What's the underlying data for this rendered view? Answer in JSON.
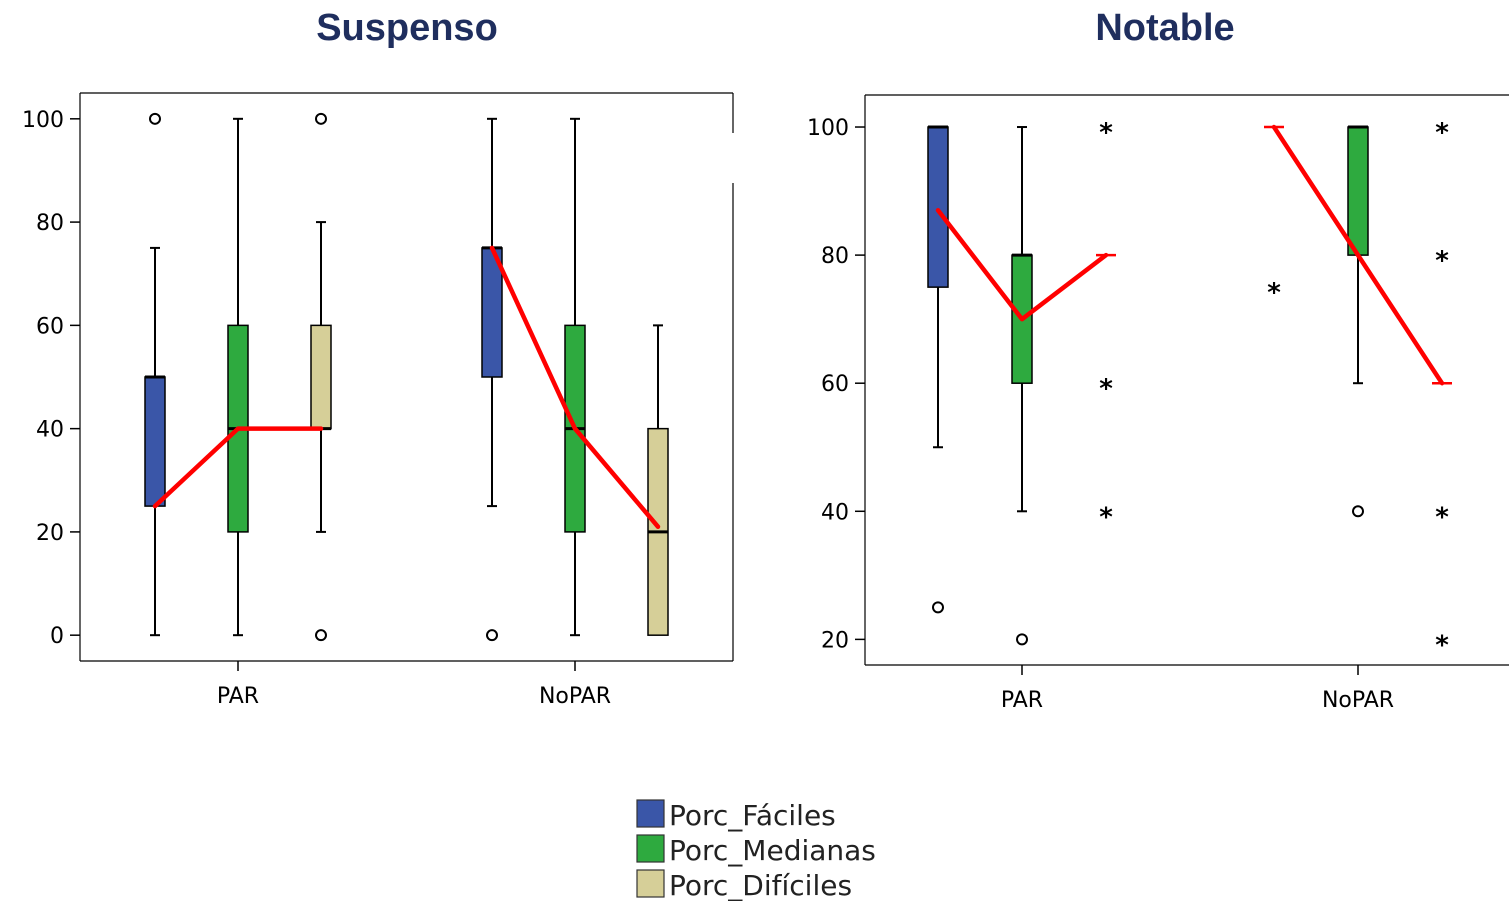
{
  "chart_data": [
    {
      "type": "boxplot",
      "title": "Suspenso",
      "xlabel": "",
      "ylabel": "",
      "ylim": [
        -5,
        105
      ],
      "yticks": [
        0,
        20,
        40,
        60,
        80,
        100
      ],
      "categories": [
        "PAR",
        "NoPAR"
      ],
      "series": [
        {
          "name": "Porc_Fáciles",
          "color": "#3A56A8",
          "boxes": [
            {
              "category": "PAR",
              "min": 0,
              "q1": 25,
              "median": 50,
              "q3": 50,
              "max": 75,
              "outliers": [
                {
                  "value": 100,
                  "kind": "circle"
                }
              ]
            },
            {
              "category": "NoPAR",
              "min": 25,
              "q1": 50,
              "median": 75,
              "q3": 75,
              "max": 100,
              "outliers": [
                {
                  "value": 0,
                  "kind": "circle"
                }
              ]
            }
          ]
        },
        {
          "name": "Porc_Medianas",
          "color": "#2EAA3F",
          "boxes": [
            {
              "category": "PAR",
              "min": 0,
              "q1": 20,
              "median": 40,
              "q3": 60,
              "max": 100,
              "outliers": []
            },
            {
              "category": "NoPAR",
              "min": 0,
              "q1": 20,
              "median": 40,
              "q3": 60,
              "max": 100,
              "outliers": []
            }
          ]
        },
        {
          "name": "Porc_Difíciles",
          "color": "#D6CF98",
          "boxes": [
            {
              "category": "PAR",
              "min": 20,
              "q1": 40,
              "median": 40,
              "q3": 60,
              "max": 80,
              "outliers": [
                {
                  "value": 100,
                  "kind": "circle"
                },
                {
                  "value": 0,
                  "kind": "circle"
                }
              ]
            },
            {
              "category": "NoPAR",
              "min": 0,
              "q1": 0,
              "median": 20,
              "q3": 40,
              "max": 60,
              "outliers": []
            }
          ]
        }
      ],
      "trend_lines": [
        {
          "category": "PAR",
          "color": "#FF0000",
          "values": [
            25,
            40,
            40
          ]
        },
        {
          "category": "NoPAR",
          "color": "#FF0000",
          "values": [
            75,
            40,
            21
          ]
        }
      ]
    },
    {
      "type": "boxplot",
      "title": "Notable",
      "xlabel": "",
      "ylabel": "",
      "ylim": [
        16,
        105
      ],
      "yticks": [
        20,
        40,
        60,
        80,
        100
      ],
      "categories": [
        "PAR",
        "NoPAR"
      ],
      "series": [
        {
          "name": "Porc_Fáciles",
          "color": "#3A56A8",
          "boxes": [
            {
              "category": "PAR",
              "min": 50,
              "q1": 75,
              "median": 100,
              "q3": 100,
              "max": 100,
              "outliers": [
                {
                  "value": 25,
                  "kind": "circle"
                }
              ]
            },
            {
              "category": "NoPAR",
              "min": 100,
              "q1": 100,
              "median": 100,
              "q3": 100,
              "max": 100,
              "outliers": [
                {
                  "value": 75,
                  "kind": "star"
                }
              ]
            }
          ]
        },
        {
          "name": "Porc_Medianas",
          "color": "#2EAA3F",
          "boxes": [
            {
              "category": "PAR",
              "min": 40,
              "q1": 60,
              "median": 80,
              "q3": 80,
              "max": 100,
              "outliers": [
                {
                  "value": 20,
                  "kind": "circle"
                }
              ]
            },
            {
              "category": "NoPAR",
              "min": 60,
              "q1": 80,
              "median": 100,
              "q3": 100,
              "max": 100,
              "outliers": [
                {
                  "value": 40,
                  "kind": "circle"
                }
              ]
            }
          ]
        },
        {
          "name": "Porc_Difíciles",
          "color": "#D6CF98",
          "boxes": [
            {
              "category": "PAR",
              "min": 80,
              "q1": 80,
              "median": 80,
              "q3": 80,
              "max": 80,
              "outliers": [
                {
                  "value": 100,
                  "kind": "star"
                },
                {
                  "value": 60,
                  "kind": "star"
                },
                {
                  "value": 40,
                  "kind": "star"
                }
              ]
            },
            {
              "category": "NoPAR",
              "min": 60,
              "q1": 60,
              "median": 60,
              "q3": 60,
              "max": 60,
              "outliers": [
                {
                  "value": 100,
                  "kind": "star"
                },
                {
                  "value": 80,
                  "kind": "star"
                },
                {
                  "value": 40,
                  "kind": "star"
                },
                {
                  "value": 20,
                  "kind": "star"
                }
              ]
            }
          ]
        }
      ],
      "trend_lines": [
        {
          "category": "PAR",
          "color": "#FF0000",
          "values": [
            87,
            70,
            80
          ]
        },
        {
          "category": "NoPAR",
          "color": "#FF0000",
          "values": [
            100,
            80,
            60
          ]
        }
      ]
    }
  ],
  "legend": {
    "placement": "bottom-center",
    "items": [
      {
        "label": "Porc_Fáciles",
        "color": "#3A56A8"
      },
      {
        "label": "Porc_Medianas",
        "color": "#2EAA3F"
      },
      {
        "label": "Porc_Difíciles",
        "color": "#D6CF98"
      }
    ]
  }
}
